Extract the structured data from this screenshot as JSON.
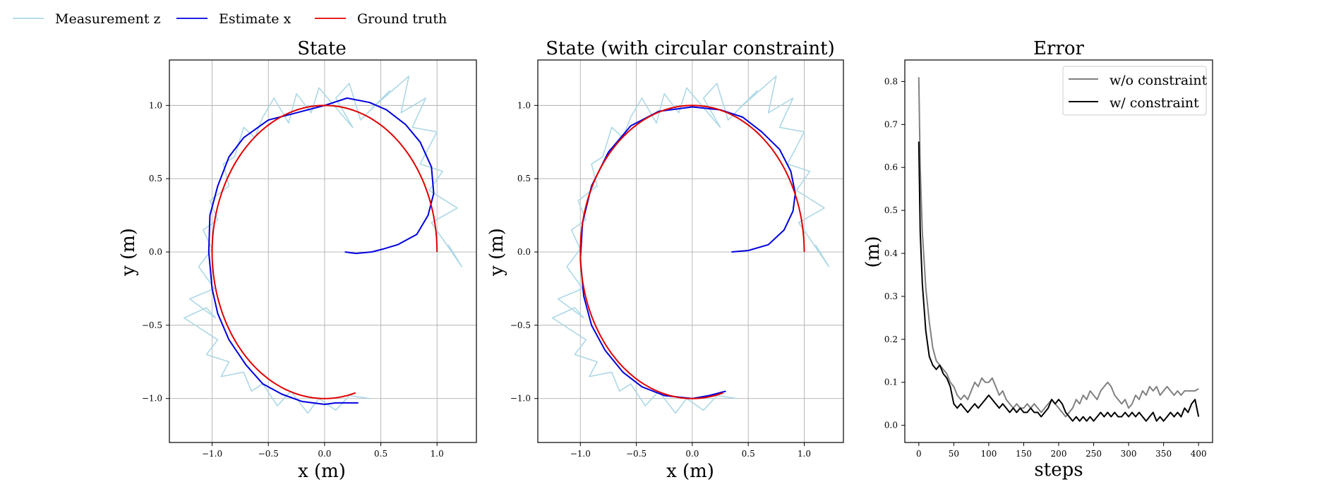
{
  "figure_legend": {
    "entries": [
      {
        "label": "Measurement z",
        "color": "#add8e6"
      },
      {
        "label": "Estimate x",
        "color": "#0000e0"
      },
      {
        "label": "Ground truth",
        "color": "#e00000"
      }
    ]
  },
  "chart_data": [
    {
      "type": "line",
      "title": "State",
      "xlabel": "x (m)",
      "ylabel": "y (m)",
      "xlim": [
        -1.38,
        1.35
      ],
      "ylim": [
        -1.3,
        1.31
      ],
      "xticks": [
        -1.0,
        -0.5,
        0.0,
        0.5,
        1.0
      ],
      "xtick_labels": [
        "−1.0",
        "−0.5",
        "0.0",
        "0.5",
        "1.0"
      ],
      "yticks": [
        -1.0,
        -0.5,
        0.0,
        0.5,
        1.0
      ],
      "ytick_labels": [
        "−1.0",
        "−0.5",
        "0.0",
        "0.5",
        "1.0"
      ],
      "grid": true,
      "series": [
        {
          "name": "Measurement z",
          "color": "#add8e6",
          "x": [
            1.1,
            1.22,
            0.95,
            1.18,
            0.93,
            1.05,
            0.85,
            1.0,
            0.78,
            0.9,
            0.68,
            0.75,
            0.42,
            0.58,
            0.32,
            0.22,
            0.1,
            0.25,
            -0.05,
            -0.12,
            -0.25,
            -0.32,
            -0.45,
            -0.55,
            -0.62,
            -0.72,
            -0.8,
            -0.9,
            -0.85,
            -1.02,
            -0.95,
            -1.08,
            -1.0,
            -1.12,
            -0.98,
            -1.2,
            -0.97,
            -1.05,
            -1.25,
            -0.95,
            -1.05,
            -0.85,
            -0.92,
            -0.72,
            -0.65,
            -0.55,
            -0.42,
            -0.3,
            -0.15,
            -0.05,
            0.1,
            0.22,
            0.4
          ],
          "y": [
            0.05,
            -0.1,
            0.2,
            0.3,
            0.42,
            0.55,
            0.6,
            0.82,
            0.85,
            1.05,
            0.95,
            1.2,
            0.98,
            1.1,
            0.9,
            1.15,
            1.05,
            0.85,
            1.12,
            0.95,
            1.08,
            0.88,
            1.05,
            0.92,
            0.78,
            0.85,
            0.65,
            0.6,
            0.45,
            0.35,
            0.22,
            0.15,
            0.02,
            -0.1,
            -0.25,
            -0.32,
            -0.45,
            -0.38,
            -0.45,
            -0.6,
            -0.7,
            -0.75,
            -0.85,
            -0.82,
            -0.95,
            -0.9,
            -1.05,
            -0.95,
            -1.1,
            -1.0,
            -1.08,
            -0.98,
            -1.0
          ]
        },
        {
          "name": "Estimate x",
          "color": "#0000e0",
          "x": [
            0.18,
            0.28,
            0.42,
            0.52,
            0.65,
            0.82,
            0.92,
            0.97,
            0.95,
            0.85,
            0.72,
            0.55,
            0.4,
            0.2,
            0.0,
            -0.25,
            -0.5,
            -0.72,
            -0.85,
            -0.95,
            -1.02,
            -1.03,
            -1.0,
            -0.95,
            -0.85,
            -0.7,
            -0.55,
            -0.38,
            -0.2,
            0.0,
            0.1,
            0.3
          ],
          "y": [
            0.0,
            -0.01,
            0.0,
            0.02,
            0.05,
            0.12,
            0.25,
            0.4,
            0.58,
            0.75,
            0.87,
            0.97,
            1.02,
            1.05,
            1.0,
            0.95,
            0.9,
            0.78,
            0.65,
            0.45,
            0.25,
            0.0,
            -0.25,
            -0.42,
            -0.6,
            -0.77,
            -0.9,
            -0.97,
            -1.02,
            -1.04,
            -1.03,
            -1.03
          ]
        },
        {
          "name": "Ground truth",
          "color": "#e00000",
          "circle": {
            "cx": 0.0,
            "cy": 0.0,
            "r": 1.0,
            "from_deg": 0,
            "to_deg": 287
          }
        }
      ]
    },
    {
      "type": "line",
      "title": "State (with circular constraint)",
      "xlabel": "x (m)",
      "ylabel": "y (m)",
      "xlim": [
        -1.38,
        1.35
      ],
      "ylim": [
        -1.3,
        1.31
      ],
      "xticks": [
        -1.0,
        -0.5,
        0.0,
        0.5,
        1.0
      ],
      "xtick_labels": [
        "−1.0",
        "−0.5",
        "0.0",
        "0.5",
        "1.0"
      ],
      "yticks": [
        -1.0,
        -0.5,
        0.0,
        0.5,
        1.0
      ],
      "ytick_labels": [
        "−1.0",
        "−0.5",
        "0.0",
        "0.5",
        "1.0"
      ],
      "grid": true,
      "series": [
        {
          "name": "Measurement z",
          "color": "#add8e6",
          "x": [
            1.1,
            1.22,
            0.95,
            1.18,
            0.93,
            1.05,
            0.85,
            1.0,
            0.78,
            0.9,
            0.68,
            0.75,
            0.42,
            0.58,
            0.32,
            0.22,
            0.1,
            0.25,
            -0.05,
            -0.12,
            -0.25,
            -0.32,
            -0.45,
            -0.55,
            -0.62,
            -0.72,
            -0.8,
            -0.9,
            -0.85,
            -1.02,
            -0.95,
            -1.08,
            -1.0,
            -1.12,
            -0.98,
            -1.2,
            -0.97,
            -1.05,
            -1.25,
            -0.95,
            -1.05,
            -0.85,
            -0.92,
            -0.72,
            -0.65,
            -0.55,
            -0.42,
            -0.3,
            -0.15,
            -0.05,
            0.1,
            0.22,
            0.4
          ],
          "y": [
            0.05,
            -0.1,
            0.2,
            0.3,
            0.42,
            0.55,
            0.6,
            0.82,
            0.85,
            1.05,
            0.95,
            1.2,
            0.98,
            1.1,
            0.9,
            1.15,
            1.05,
            0.85,
            1.12,
            0.95,
            1.08,
            0.88,
            1.05,
            0.92,
            0.78,
            0.85,
            0.65,
            0.6,
            0.45,
            0.35,
            0.22,
            0.15,
            0.02,
            -0.1,
            -0.25,
            -0.32,
            -0.45,
            -0.38,
            -0.45,
            -0.6,
            -0.7,
            -0.75,
            -0.85,
            -0.82,
            -0.95,
            -0.9,
            -1.05,
            -0.95,
            -1.1,
            -1.0,
            -1.08,
            -0.98,
            -1.0
          ]
        },
        {
          "name": "Estimate x",
          "color": "#0000e0",
          "x": [
            0.35,
            0.5,
            0.68,
            0.82,
            0.9,
            0.92,
            0.88,
            0.78,
            0.62,
            0.45,
            0.25,
            0.0,
            -0.3,
            -0.55,
            -0.75,
            -0.9,
            -0.98,
            -1.0,
            -0.97,
            -0.9,
            -0.78,
            -0.62,
            -0.45,
            -0.25,
            0.0,
            0.15,
            0.3
          ],
          "y": [
            0.0,
            0.01,
            0.05,
            0.15,
            0.28,
            0.4,
            0.55,
            0.7,
            0.82,
            0.92,
            0.97,
            0.99,
            0.96,
            0.86,
            0.68,
            0.45,
            0.2,
            -0.05,
            -0.3,
            -0.5,
            -0.67,
            -0.82,
            -0.92,
            -0.98,
            -1.0,
            -0.98,
            -0.95
          ]
        },
        {
          "name": "Ground truth",
          "color": "#e00000",
          "circle": {
            "cx": 0.0,
            "cy": 0.0,
            "r": 1.0,
            "from_deg": 0,
            "to_deg": 287
          }
        }
      ]
    },
    {
      "type": "line",
      "title": "Error",
      "xlabel": "steps",
      "ylabel": "(m)",
      "xlim": [
        -20,
        420
      ],
      "ylim": [
        -0.04,
        0.85
      ],
      "xticks": [
        0,
        50,
        100,
        150,
        200,
        250,
        300,
        350,
        400
      ],
      "xtick_labels": [
        "0",
        "50",
        "100",
        "150",
        "200",
        "250",
        "300",
        "350",
        "400"
      ],
      "yticks": [
        0.0,
        0.1,
        0.2,
        0.3,
        0.4,
        0.5,
        0.6,
        0.7,
        0.8
      ],
      "ytick_labels": [
        "0.0",
        "0.1",
        "0.2",
        "0.3",
        "0.4",
        "0.5",
        "0.6",
        "0.7",
        "0.8"
      ],
      "grid": false,
      "legend": "top-right",
      "series": [
        {
          "name": "w/o constraint",
          "color": "#808080",
          "x": [
            0,
            2,
            5,
            10,
            15,
            20,
            25,
            30,
            35,
            40,
            45,
            50,
            55,
            60,
            65,
            70,
            75,
            80,
            85,
            90,
            95,
            100,
            105,
            110,
            115,
            120,
            125,
            130,
            135,
            140,
            145,
            150,
            155,
            160,
            165,
            170,
            175,
            180,
            185,
            190,
            195,
            200,
            205,
            210,
            215,
            220,
            225,
            230,
            235,
            240,
            245,
            250,
            255,
            260,
            265,
            270,
            275,
            280,
            285,
            290,
            295,
            300,
            305,
            310,
            315,
            320,
            325,
            330,
            335,
            340,
            345,
            350,
            355,
            360,
            365,
            370,
            375,
            380,
            385,
            390,
            395,
            400
          ],
          "y": [
            0.81,
            0.6,
            0.45,
            0.32,
            0.24,
            0.18,
            0.15,
            0.14,
            0.13,
            0.12,
            0.1,
            0.09,
            0.07,
            0.06,
            0.07,
            0.06,
            0.08,
            0.1,
            0.09,
            0.11,
            0.1,
            0.1,
            0.11,
            0.09,
            0.07,
            0.08,
            0.06,
            0.05,
            0.04,
            0.05,
            0.04,
            0.04,
            0.05,
            0.04,
            0.05,
            0.04,
            0.03,
            0.04,
            0.05,
            0.06,
            0.05,
            0.04,
            0.03,
            0.02,
            0.03,
            0.04,
            0.06,
            0.05,
            0.07,
            0.06,
            0.08,
            0.07,
            0.06,
            0.08,
            0.09,
            0.1,
            0.09,
            0.07,
            0.06,
            0.05,
            0.06,
            0.04,
            0.05,
            0.07,
            0.06,
            0.08,
            0.07,
            0.09,
            0.08,
            0.09,
            0.07,
            0.08,
            0.09,
            0.08,
            0.07,
            0.08,
            0.07,
            0.08,
            0.08,
            0.08,
            0.08,
            0.085
          ]
        },
        {
          "name": "w/ constraint",
          "color": "#000000",
          "x": [
            0,
            2,
            5,
            10,
            15,
            20,
            25,
            30,
            35,
            40,
            45,
            50,
            55,
            60,
            65,
            70,
            75,
            80,
            85,
            90,
            95,
            100,
            105,
            110,
            115,
            120,
            125,
            130,
            135,
            140,
            145,
            150,
            155,
            160,
            165,
            170,
            175,
            180,
            185,
            190,
            195,
            200,
            205,
            210,
            215,
            220,
            225,
            230,
            235,
            240,
            245,
            250,
            255,
            260,
            265,
            270,
            275,
            280,
            285,
            290,
            295,
            300,
            305,
            310,
            315,
            320,
            325,
            330,
            335,
            340,
            345,
            350,
            355,
            360,
            365,
            370,
            375,
            380,
            385,
            390,
            395,
            400
          ],
          "y": [
            0.66,
            0.45,
            0.33,
            0.22,
            0.16,
            0.14,
            0.13,
            0.14,
            0.12,
            0.11,
            0.09,
            0.05,
            0.04,
            0.05,
            0.04,
            0.03,
            0.04,
            0.05,
            0.04,
            0.05,
            0.06,
            0.07,
            0.06,
            0.05,
            0.04,
            0.05,
            0.04,
            0.03,
            0.04,
            0.03,
            0.04,
            0.03,
            0.03,
            0.04,
            0.03,
            0.03,
            0.02,
            0.03,
            0.04,
            0.06,
            0.05,
            0.06,
            0.05,
            0.03,
            0.02,
            0.01,
            0.02,
            0.01,
            0.02,
            0.01,
            0.02,
            0.01,
            0.02,
            0.03,
            0.02,
            0.03,
            0.02,
            0.03,
            0.02,
            0.02,
            0.03,
            0.02,
            0.03,
            0.02,
            0.03,
            0.02,
            0.01,
            0.02,
            0.03,
            0.01,
            0.02,
            0.01,
            0.02,
            0.03,
            0.02,
            0.03,
            0.02,
            0.04,
            0.03,
            0.05,
            0.06,
            0.02
          ]
        }
      ]
    }
  ]
}
